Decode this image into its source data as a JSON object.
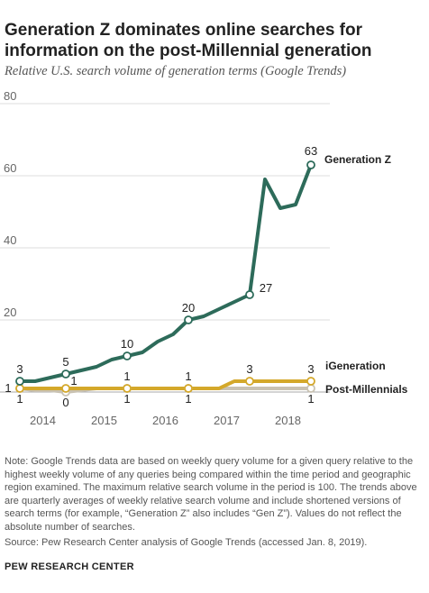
{
  "title": "Generation Z dominates online searches for information on the post-Millennial generation",
  "subtitle": "Relative U.S. search volume of generation terms (Google Trends)",
  "note": "Note: Google Trends data are based on weekly query volume for a given query relative to the highest weekly volume of any queries being compared within the time period and geographic region examined. The maximum relative search volume in the period is 100. The trends above are quarterly averages of weekly relative search volume and include shortened versions of search terms (for example, “Generation Z” also includes “Gen Z”). Values do not reflect the absolute number of searches.",
  "source": "Source: Pew Research Center analysis of Google Trends (accessed Jan. 8, 2019).",
  "organization": "PEW RESEARCH CENTER",
  "chart_data": {
    "type": "line",
    "ylim": [
      0,
      80
    ],
    "yticks": [
      0,
      20,
      40,
      60,
      80
    ],
    "ytick_labels": [
      "",
      "20",
      "40",
      "60",
      "80"
    ],
    "xlim": [
      2013.75,
      2018.75
    ],
    "xticks": [
      2014,
      2015,
      2016,
      2017,
      2018
    ],
    "xtick_labels": [
      "2014",
      "2015",
      "2016",
      "2017",
      "2018"
    ],
    "grid": true,
    "legend": "inline labels at line ends",
    "series": [
      {
        "name": "Post-Millennials",
        "color": "#c9c2b2",
        "x": [
          2013.75,
          2014.0,
          2014.25,
          2014.5,
          2014.75,
          2015.0,
          2015.25,
          2015.5,
          2015.75,
          2016.0,
          2016.25,
          2016.5,
          2016.75,
          2017.0,
          2017.25,
          2017.5,
          2017.75,
          2018.0,
          2018.25,
          2018.5
        ],
        "y": [
          1,
          0.5,
          0.5,
          0,
          0.5,
          1,
          1,
          1,
          1,
          1,
          1,
          1,
          1,
          1,
          1,
          1,
          1,
          1,
          1,
          1
        ],
        "labels": [
          {
            "x": 2013.75,
            "y": 1,
            "text": "1"
          },
          {
            "x": 2014.5,
            "y": 0,
            "text": "0"
          },
          {
            "x": 2015.5,
            "y": 1,
            "text": "1"
          },
          {
            "x": 2016.5,
            "y": 1,
            "text": "1"
          },
          {
            "x": 2018.5,
            "y": 1,
            "text": "1"
          }
        ]
      },
      {
        "name": "iGeneration",
        "color": "#d4a82a",
        "x": [
          2013.75,
          2014.0,
          2014.25,
          2014.5,
          2014.75,
          2015.0,
          2015.25,
          2015.5,
          2015.75,
          2016.0,
          2016.25,
          2016.5,
          2016.75,
          2017.0,
          2017.25,
          2017.5,
          2017.75,
          2018.0,
          2018.25,
          2018.5
        ],
        "y": [
          1,
          1,
          1,
          1,
          1,
          1,
          1,
          1,
          1,
          1,
          1,
          1,
          1,
          1,
          3,
          3,
          3,
          3,
          3,
          3
        ],
        "labels": [
          {
            "x": 2013.75,
            "y": 1,
            "text": "1"
          },
          {
            "x": 2014.5,
            "y": 1,
            "text": "1"
          },
          {
            "x": 2015.5,
            "y": 1,
            "text": "1"
          },
          {
            "x": 2016.5,
            "y": 1,
            "text": "1"
          },
          {
            "x": 2017.5,
            "y": 3,
            "text": "3"
          },
          {
            "x": 2018.5,
            "y": 3,
            "text": "3"
          }
        ]
      },
      {
        "name": "Generation Z",
        "color": "#2d6b5a",
        "x": [
          2013.75,
          2014.0,
          2014.25,
          2014.5,
          2014.75,
          2015.0,
          2015.25,
          2015.5,
          2015.75,
          2016.0,
          2016.25,
          2016.5,
          2016.75,
          2017.0,
          2017.25,
          2017.5,
          2017.75,
          2018.0,
          2018.25,
          2018.5
        ],
        "y": [
          3,
          3,
          4,
          5,
          6,
          7,
          9,
          10,
          11,
          14,
          16,
          20,
          21,
          23,
          25,
          27,
          59,
          51,
          52,
          63
        ],
        "labels": [
          {
            "x": 2013.75,
            "y": 3,
            "text": "3"
          },
          {
            "x": 2014.5,
            "y": 5,
            "text": "5"
          },
          {
            "x": 2015.5,
            "y": 10,
            "text": "10"
          },
          {
            "x": 2016.5,
            "y": 20,
            "text": "20"
          },
          {
            "x": 2017.5,
            "y": 27,
            "text": "27"
          },
          {
            "x": 2018.5,
            "y": 63,
            "text": "63"
          }
        ]
      }
    ]
  }
}
